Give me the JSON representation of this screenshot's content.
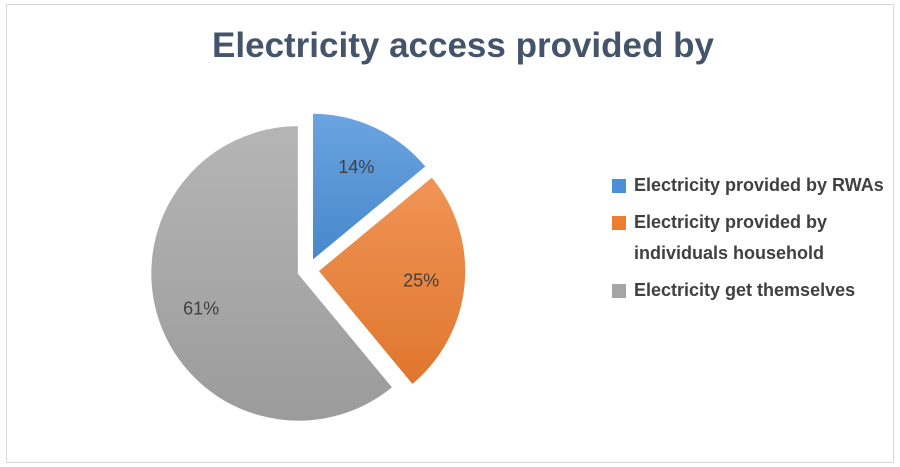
{
  "chart_data": {
    "type": "pie",
    "title": "Electricity access provided by",
    "categories": [
      "Electricity provided by RWAs",
      "Electricity provided by individuals household",
      "Electricity get themselves"
    ],
    "values": [
      14,
      25,
      61
    ],
    "data_labels": [
      "14%",
      "25%",
      "61%"
    ],
    "colors": [
      "#4a90d9",
      "#ed7d31",
      "#a5a5a5"
    ],
    "exploded": true,
    "legend_position": "right"
  },
  "legend": {
    "items": [
      {
        "label": "Electricity provided by RWAs",
        "color": "#4a90d9"
      },
      {
        "label": "Electricity provided by individuals household",
        "color": "#ed7d31"
      },
      {
        "label": "Electricity get themselves",
        "color": "#a5a5a5"
      }
    ]
  }
}
